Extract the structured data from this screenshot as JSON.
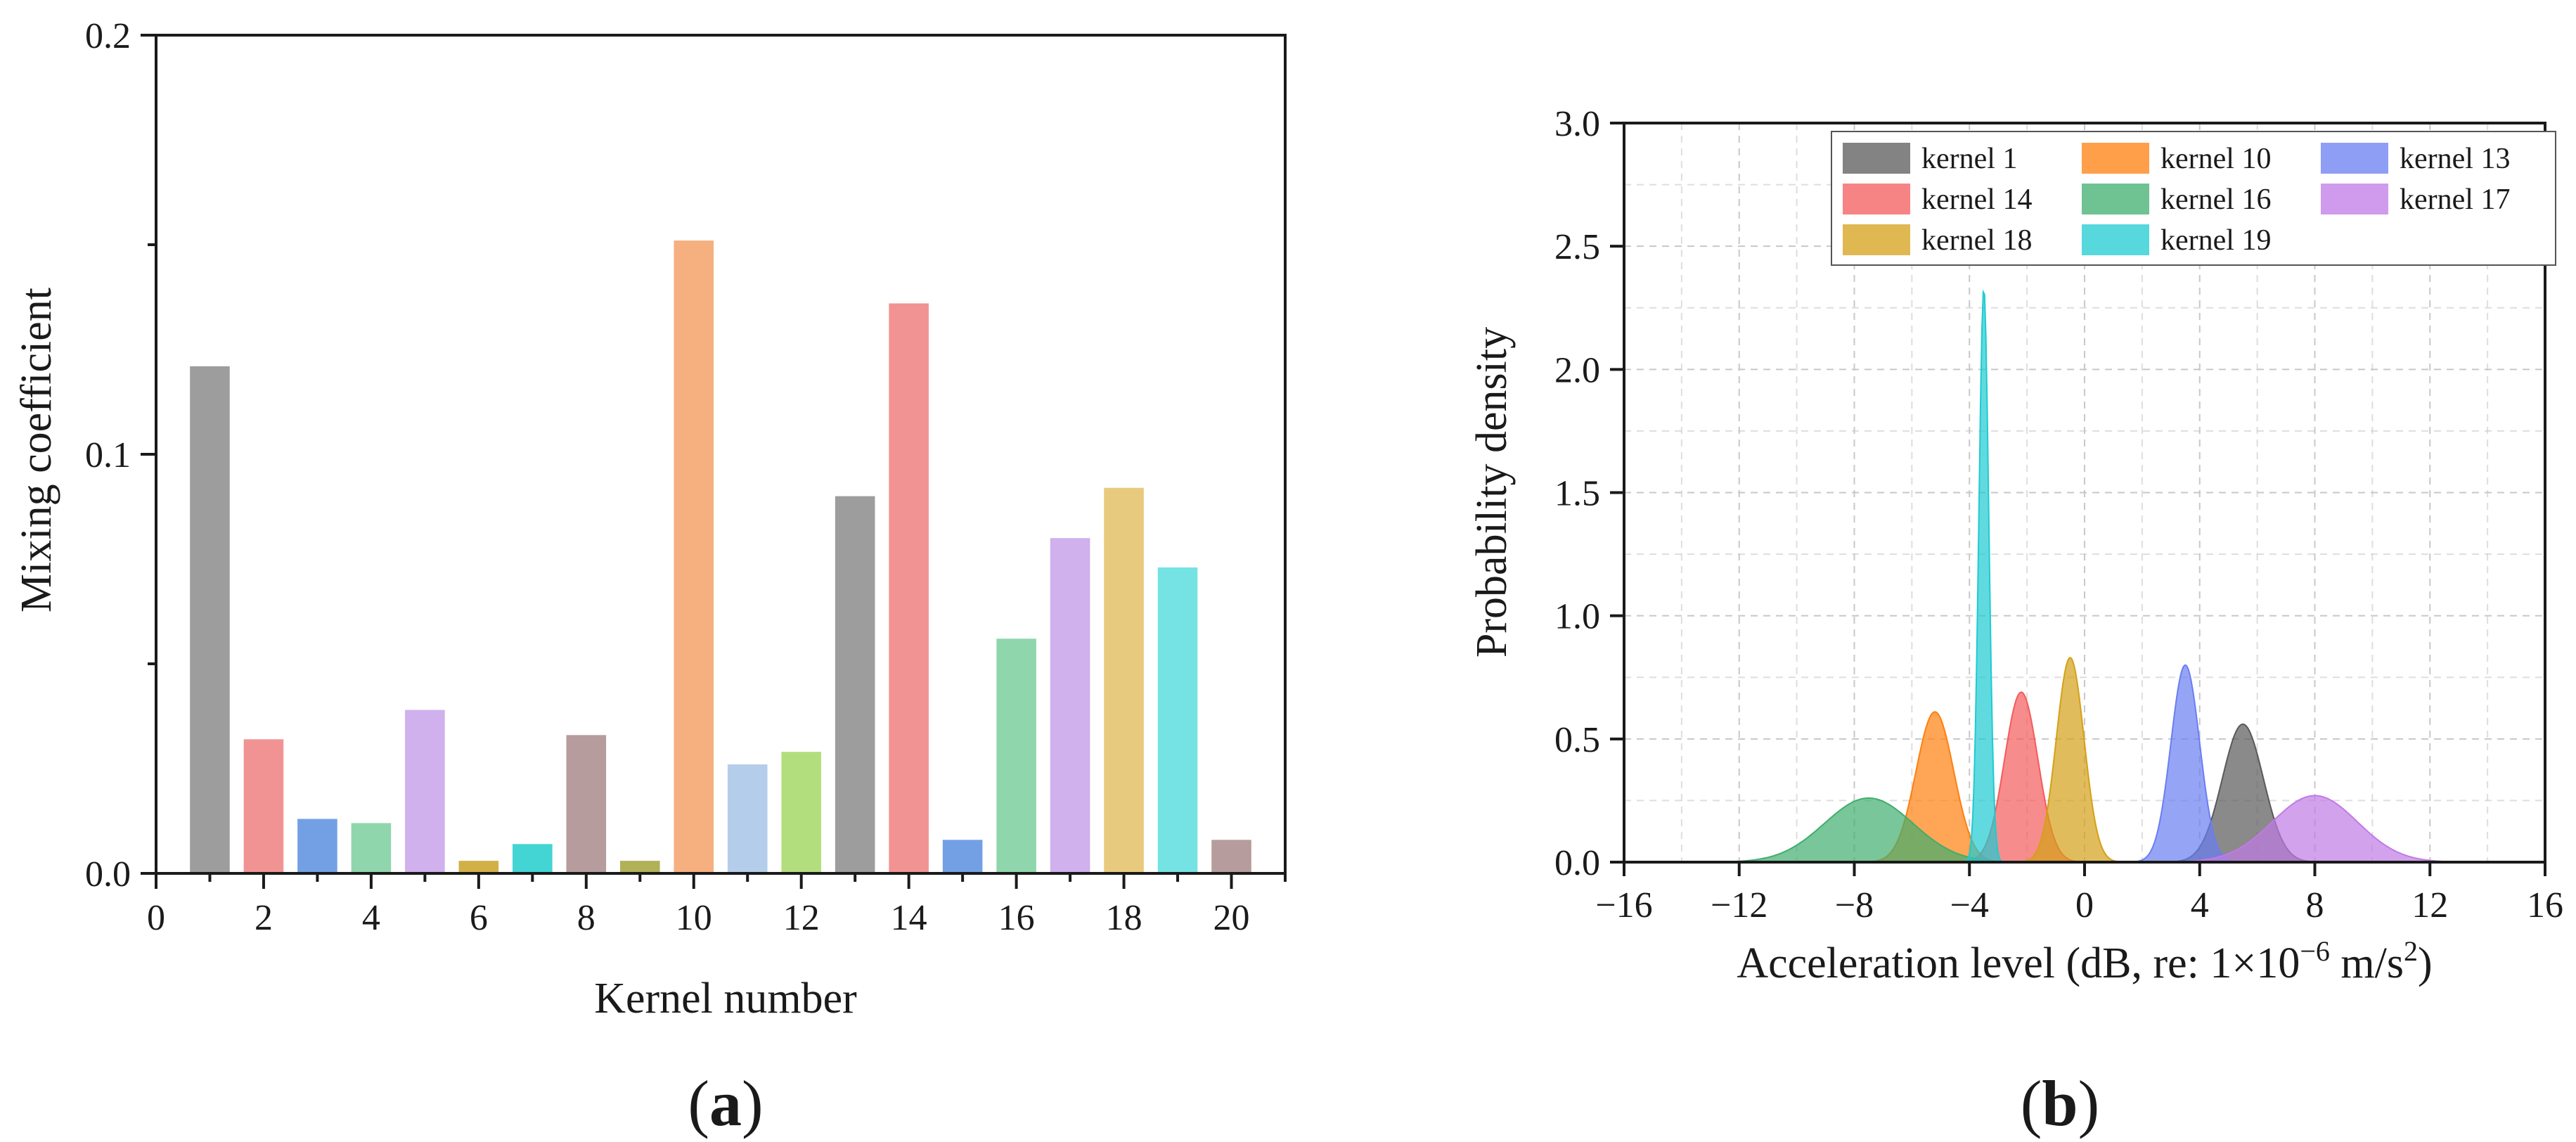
{
  "chart_data": [
    {
      "type": "bar",
      "panel_label": "(a)",
      "panel_letter": "a",
      "xlabel": "Kernel number",
      "ylabel": "Mixing coefficient",
      "xlim": [
        0,
        21
      ],
      "ylim": [
        0,
        0.2
      ],
      "x_ticks": [
        0,
        2,
        4,
        6,
        8,
        10,
        12,
        14,
        16,
        18,
        20
      ],
      "y_ticks": [
        {
          "value": 0.0,
          "label": "0.0"
        },
        {
          "value": 0.1,
          "label": "0.1"
        },
        {
          "value": 0.2,
          "label": "0.2"
        }
      ],
      "y_minor_ticks": [
        0.05,
        0.15
      ],
      "categories": [
        1,
        2,
        3,
        4,
        5,
        6,
        7,
        8,
        9,
        10,
        11,
        12,
        13,
        14,
        15,
        16,
        17,
        18,
        19,
        20
      ],
      "values": [
        0.121,
        0.032,
        0.013,
        0.012,
        0.039,
        0.003,
        0.007,
        0.033,
        0.003,
        0.151,
        0.026,
        0.029,
        0.09,
        0.136,
        0.008,
        0.056,
        0.08,
        0.092,
        0.073,
        0.008
      ],
      "colors": [
        "#8c8c8c",
        "#f08080",
        "#5b8fe0",
        "#7dcf9f",
        "#c8a2ea",
        "#c9a227",
        "#22cccc",
        "#a98b8b",
        "#a3a33a",
        "#f5a26a",
        "#a7c4e6",
        "#a6d867",
        "#8c8c8c",
        "#f08080",
        "#5b8fe0",
        "#7dcf9f",
        "#c8a2ea",
        "#e4c167",
        "#5ddede",
        "#a98b8b"
      ]
    },
    {
      "type": "area",
      "panel_label": "(b)",
      "panel_letter": "b",
      "xlabel_prefix": "Acceleration level (dB, re: 1×10",
      "xlabel_exp": "−6",
      "xlabel_mid": " m/s",
      "xlabel_sq": "2",
      "xlabel_end": ")",
      "ylabel": "Probability density",
      "xlim": [
        -16,
        16
      ],
      "ylim": [
        0,
        3.0
      ],
      "x_ticks": [
        {
          "value": -16,
          "label": "−16"
        },
        {
          "value": -12,
          "label": "−12"
        },
        {
          "value": -8,
          "label": "−8"
        },
        {
          "value": -4,
          "label": "−4"
        },
        {
          "value": 0,
          "label": "0"
        },
        {
          "value": 4,
          "label": "4"
        },
        {
          "value": 8,
          "label": "8"
        },
        {
          "value": 12,
          "label": "12"
        },
        {
          "value": 16,
          "label": "16"
        }
      ],
      "y_ticks": [
        {
          "value": 0.0,
          "label": "0.0"
        },
        {
          "value": 0.5,
          "label": "0.5"
        },
        {
          "value": 1.0,
          "label": "1.0"
        },
        {
          "value": 1.5,
          "label": "1.5"
        },
        {
          "value": 2.0,
          "label": "2.0"
        },
        {
          "value": 2.5,
          "label": "2.5"
        },
        {
          "value": 3.0,
          "label": "3.0"
        }
      ],
      "grid": true,
      "legend_position": "top-right",
      "series": [
        {
          "name": "kernel 1",
          "mean": 5.5,
          "peak": 0.56,
          "color": "#595959"
        },
        {
          "name": "kernel 10",
          "mean": -5.2,
          "peak": 0.61,
          "color": "#ff7f0e"
        },
        {
          "name": "kernel 13",
          "mean": 3.5,
          "peak": 0.8,
          "color": "#6a7ef2"
        },
        {
          "name": "kernel 14",
          "mean": -2.2,
          "peak": 0.69,
          "color": "#f45b5b"
        },
        {
          "name": "kernel 16",
          "mean": -7.5,
          "peak": 0.26,
          "color": "#3fae6e"
        },
        {
          "name": "kernel 17",
          "mean": 8.0,
          "peak": 0.27,
          "color": "#c07ae6"
        },
        {
          "name": "kernel 18",
          "mean": -0.5,
          "peak": 0.83,
          "color": "#d4a017"
        },
        {
          "name": "kernel 19",
          "mean": -3.5,
          "peak": 2.33,
          "color": "#1ecbd1"
        }
      ],
      "legend_order": [
        "kernel 1",
        "kernel 10",
        "kernel 13",
        "kernel 14",
        "kernel 16",
        "kernel 17",
        "kernel 18",
        "kernel 19"
      ]
    }
  ]
}
